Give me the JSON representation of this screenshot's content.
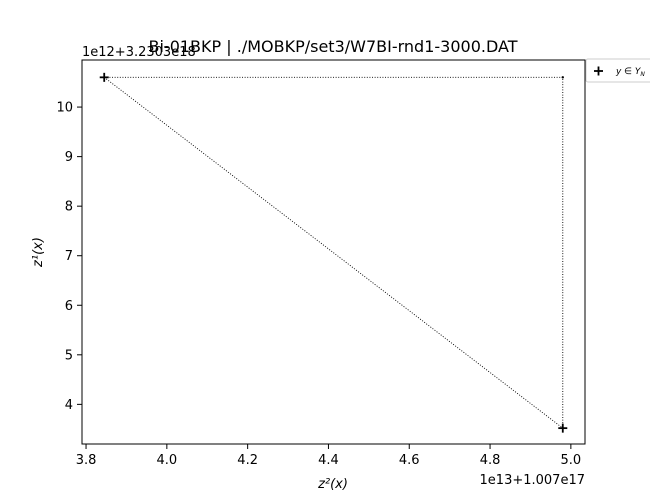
{
  "chart_data": {
    "type": "scatter",
    "title": "Bi-01BKP | ./MOBKP/set3/W7BI-rnd1-3000.DAT",
    "xlabel": "z²(x)",
    "ylabel": "z¹(x)",
    "x_offset_text": "1e13+1.007e17",
    "y_offset_text": "1e12+3.2303e18",
    "xlim": [
      3.79,
      5.035
    ],
    "ylim": [
      3.2,
      10.95
    ],
    "x_ticks": [
      "3.8",
      "4.0",
      "4.2",
      "4.4",
      "4.6",
      "4.8",
      "5.0"
    ],
    "x_tick_values": [
      3.8,
      4.0,
      4.2,
      4.4,
      4.6,
      4.8,
      5.0
    ],
    "y_ticks": [
      "4",
      "5",
      "6",
      "7",
      "8",
      "9",
      "10"
    ],
    "y_tick_values": [
      4,
      5,
      6,
      7,
      8,
      9,
      10
    ],
    "grid": false,
    "legend_position": "outside-top-right",
    "series": [
      {
        "name": "y ∈ Y_N",
        "marker": "plus",
        "color": "#000000",
        "points": [
          {
            "x": 3.845,
            "y": 10.6
          },
          {
            "x": 4.98,
            "y": 3.52
          }
        ]
      }
    ],
    "connecting_path": {
      "style": "dotted",
      "color": "#000000",
      "points": [
        {
          "x": 3.845,
          "y": 10.6
        },
        {
          "x": 4.98,
          "y": 10.6
        },
        {
          "x": 4.98,
          "y": 3.52
        },
        {
          "x": 3.845,
          "y": 10.6
        }
      ]
    }
  },
  "legend": {
    "entry_label": "y ∈ Y",
    "entry_subscript": "N"
  }
}
